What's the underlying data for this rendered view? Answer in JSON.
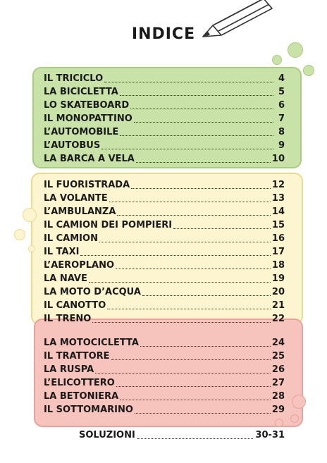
{
  "title": "INDICE",
  "sections": [
    {
      "color": "#c9e2a8",
      "entries": [
        {
          "label": "IL TRICICLO",
          "page": "4"
        },
        {
          "label": "LA BICICLETTA",
          "page": "5"
        },
        {
          "label": "LO SKATEBOARD",
          "page": "6"
        },
        {
          "label": "IL MONOPATTINO",
          "page": "7"
        },
        {
          "label": "L’AUTOMOBILE",
          "page": "8"
        },
        {
          "label": "L’AUTOBUS",
          "page": "9"
        },
        {
          "label": "LA BARCA A VELA",
          "page": "10"
        }
      ]
    },
    {
      "color": "#fdf5cf",
      "entries": [
        {
          "label": "IL FUORISTRADA",
          "page": "12"
        },
        {
          "label": "LA VOLANTE",
          "page": "13"
        },
        {
          "label": "L’AMBULANZA",
          "page": "14"
        },
        {
          "label": "IL CAMION DEI POMPIERI",
          "page": "15"
        },
        {
          "label": "IL CAMION",
          "page": "16"
        },
        {
          "label": "IL TAXI",
          "page": "17"
        },
        {
          "label": "L’AEROPLANO",
          "page": "18"
        },
        {
          "label": "LA NAVE",
          "page": "19"
        },
        {
          "label": "LA MOTO D’ACQUA",
          "page": "20"
        },
        {
          "label": "IL CANOTTO",
          "page": "21"
        },
        {
          "label": "IL TRENO",
          "page": "22"
        }
      ]
    },
    {
      "color": "#f6c4bc",
      "entries": [
        {
          "label": "LA MOTOCICLETTA",
          "page": "24"
        },
        {
          "label": "IL TRATTORE",
          "page": "25"
        },
        {
          "label": "LA RUSPA",
          "page": "26"
        },
        {
          "label": "L’ELICOTTERO",
          "page": "27"
        },
        {
          "label": "LA BETONIERA",
          "page": "28"
        },
        {
          "label": "IL SOTTOMARINO",
          "page": "29"
        }
      ]
    }
  ],
  "solutions": {
    "label": "SOLUZIONI",
    "page": "30-31"
  }
}
